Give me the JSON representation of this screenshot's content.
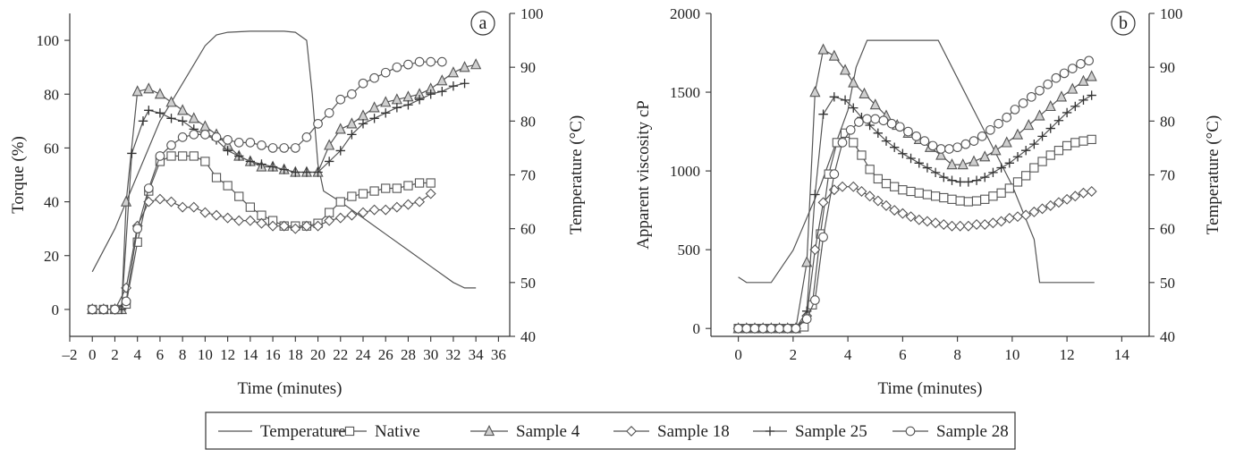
{
  "legend": [
    {
      "key": "temperature",
      "label": "Temperature",
      "marker": "none"
    },
    {
      "key": "native",
      "label": "Native",
      "marker": "square"
    },
    {
      "key": "s4",
      "label": "Sample 4",
      "marker": "triangle"
    },
    {
      "key": "s18",
      "label": "Sample 18",
      "marker": "diamond"
    },
    {
      "key": "s25",
      "label": "Sample 25",
      "marker": "plus"
    },
    {
      "key": "s28",
      "label": "Sample 28",
      "marker": "circle"
    }
  ],
  "chart_data": [
    {
      "panel": "a",
      "type": "line",
      "xlabel": "Time (minutes)",
      "ylabel": "Torque (%)",
      "y2label": "Temperature (°C)",
      "xlim": [
        -2,
        37
      ],
      "ylim": [
        -10,
        110
      ],
      "y2lim": [
        40,
        100
      ],
      "xticks": [
        -2,
        0,
        2,
        4,
        6,
        8,
        10,
        12,
        14,
        16,
        18,
        20,
        22,
        24,
        26,
        28,
        30,
        32,
        34,
        36
      ],
      "yticks": [
        0,
        20,
        40,
        60,
        80,
        100
      ],
      "y2ticks": [
        40,
        50,
        60,
        70,
        80,
        90,
        100
      ],
      "temperature": {
        "x": [
          0,
          2,
          4,
          6,
          8,
          10,
          11,
          12,
          14,
          16,
          17,
          18,
          19,
          19.5,
          20,
          20.5,
          22,
          24,
          26,
          28,
          30,
          32,
          33,
          34
        ],
        "y": [
          52,
          60,
          70,
          80,
          87,
          94,
          96,
          96.5,
          96.7,
          96.7,
          96.7,
          96.5,
          95,
          85,
          72,
          67,
          65,
          62,
          59,
          56,
          53,
          50,
          49,
          49
        ]
      },
      "series": [
        {
          "key": "native",
          "name": "Native",
          "x": [
            0,
            1,
            2,
            3,
            4,
            5,
            6,
            7,
            8,
            9,
            10,
            11,
            12,
            13,
            14,
            15,
            16,
            17,
            18,
            19,
            20,
            21,
            22,
            23,
            24,
            25,
            26,
            27,
            28,
            29,
            30
          ],
          "y": [
            0,
            0,
            0,
            2,
            25,
            44,
            55,
            57,
            57,
            57,
            55,
            49,
            46,
            42,
            38,
            35,
            33,
            31,
            31,
            31,
            32,
            36,
            40,
            42,
            43,
            44,
            45,
            45,
            46,
            47,
            47
          ]
        },
        {
          "key": "s4",
          "name": "Sample 4",
          "x": [
            0,
            1,
            2,
            2.6,
            3,
            4,
            5,
            6,
            7,
            8,
            9,
            10,
            11,
            12,
            13,
            14,
            15,
            16,
            17,
            18,
            19,
            20,
            21,
            22,
            23,
            24,
            25,
            26,
            27,
            28,
            29,
            30,
            31,
            32,
            33,
            34
          ],
          "y": [
            0,
            0,
            0,
            0,
            40,
            81,
            82,
            80,
            77,
            74,
            71,
            68,
            65,
            61,
            57,
            55,
            53,
            53,
            52,
            51,
            51,
            51,
            61,
            67,
            69,
            72,
            75,
            77,
            78,
            79,
            80,
            82,
            85,
            88,
            90,
            91
          ]
        },
        {
          "key": "s18",
          "name": "Sample 18",
          "x": [
            0,
            1,
            2,
            3,
            4,
            5,
            6,
            7,
            8,
            9,
            10,
            11,
            12,
            13,
            14,
            15,
            16,
            17,
            18,
            19,
            20,
            21,
            22,
            23,
            24,
            25,
            26,
            27,
            28,
            29,
            30
          ],
          "y": [
            0,
            0,
            0,
            8,
            31,
            40,
            41,
            40,
            38,
            38,
            36,
            35,
            34,
            33,
            33,
            32,
            31,
            31,
            30,
            31,
            31,
            33,
            34,
            35,
            36,
            37,
            37,
            38,
            39,
            40,
            43
          ]
        },
        {
          "key": "s25",
          "name": "Sample 25",
          "x": [
            0,
            1,
            2,
            2.6,
            3.5,
            4.5,
            5,
            6,
            7,
            8,
            9,
            10,
            11,
            12,
            13,
            14,
            15,
            16,
            17,
            18,
            19,
            20,
            21,
            22,
            23,
            24,
            25,
            26,
            27,
            28,
            29,
            30,
            31,
            32,
            33
          ],
          "y": [
            0,
            0,
            0,
            0,
            58,
            70,
            74,
            73,
            71,
            70,
            67,
            65,
            63,
            59,
            57,
            55,
            54,
            53,
            52,
            51,
            51,
            51,
            55,
            59,
            65,
            69,
            71,
            73,
            75,
            76,
            78,
            80,
            81,
            83,
            84
          ]
        },
        {
          "key": "s28",
          "name": "Sample 28",
          "x": [
            0,
            1,
            2,
            3,
            4,
            5,
            6,
            7,
            8,
            9,
            10,
            11,
            12,
            13,
            14,
            15,
            16,
            17,
            18,
            19,
            20,
            21,
            22,
            23,
            24,
            25,
            26,
            27,
            28,
            29,
            30,
            31
          ],
          "y": [
            0,
            0,
            0,
            3,
            30,
            45,
            57,
            61,
            64,
            65,
            65,
            64,
            63,
            62,
            62,
            61,
            60,
            60,
            60,
            64,
            69,
            73,
            78,
            80,
            84,
            86,
            88,
            90,
            91,
            92,
            92,
            92
          ]
        }
      ]
    },
    {
      "panel": "b",
      "type": "line",
      "xlabel": "Time (minutes)",
      "ylabel": "Apparent viscosity cP",
      "y2label": "Temperature (°C)",
      "xlim": [
        -1,
        15
      ],
      "ylim": [
        -50,
        2000
      ],
      "y2lim": [
        40,
        100
      ],
      "xticks": [
        0,
        2,
        4,
        6,
        8,
        10,
        12,
        14
      ],
      "yticks": [
        0,
        500,
        1000,
        1500,
        2000
      ],
      "y2ticks": [
        40,
        50,
        60,
        70,
        80,
        90,
        100
      ],
      "temperature": {
        "x": [
          0,
          0.3,
          0.8,
          1.2,
          2,
          3,
          4,
          4.3,
          4.7,
          5,
          6,
          7,
          7.3,
          8,
          9,
          10,
          10.8,
          11,
          12,
          13
        ],
        "y": [
          51,
          50,
          50,
          50,
          56,
          68,
          82,
          90,
          95,
          95,
          95,
          95,
          95,
          88,
          78,
          68,
          58,
          50,
          50,
          50
        ]
      },
      "series": [
        {
          "key": "native",
          "name": "Native",
          "x": [
            0,
            0.3,
            0.6,
            0.9,
            1.2,
            1.5,
            1.8,
            2.1,
            2.4,
            2.7,
            3.0,
            3.3,
            3.6,
            3.9,
            4.2,
            4.5,
            4.8,
            5.1,
            5.4,
            5.7,
            6.0,
            6.3,
            6.6,
            6.9,
            7.2,
            7.5,
            7.8,
            8.1,
            8.4,
            8.7,
            9.0,
            9.3,
            9.6,
            9.9,
            10.2,
            10.5,
            10.8,
            11.1,
            11.4,
            11.7,
            12.0,
            12.3,
            12.6,
            12.9
          ],
          "y": [
            0,
            0,
            0,
            0,
            0,
            0,
            0,
            0,
            10,
            150,
            600,
            980,
            1180,
            1240,
            1180,
            1100,
            1010,
            950,
            920,
            900,
            880,
            870,
            860,
            850,
            840,
            830,
            820,
            810,
            805,
            810,
            820,
            840,
            860,
            890,
            930,
            970,
            1020,
            1060,
            1100,
            1130,
            1160,
            1180,
            1190,
            1200
          ]
        },
        {
          "key": "s4",
          "name": "Sample 4",
          "x": [
            0,
            0.3,
            0.6,
            0.9,
            1.2,
            1.5,
            1.8,
            2.1,
            2.5,
            2.8,
            3.1,
            3.5,
            3.9,
            4.2,
            4.6,
            5.0,
            5.4,
            5.8,
            6.2,
            6.6,
            7.0,
            7.4,
            7.8,
            8.2,
            8.6,
            9.0,
            9.4,
            9.8,
            10.2,
            10.6,
            11.0,
            11.4,
            11.8,
            12.2,
            12.6,
            12.9
          ],
          "y": [
            0,
            0,
            0,
            0,
            0,
            0,
            0,
            0,
            420,
            1500,
            1770,
            1730,
            1640,
            1560,
            1490,
            1420,
            1350,
            1290,
            1240,
            1200,
            1150,
            1100,
            1040,
            1040,
            1060,
            1090,
            1130,
            1180,
            1230,
            1290,
            1350,
            1410,
            1470,
            1520,
            1570,
            1600
          ]
        },
        {
          "key": "s18",
          "name": "Sample 18",
          "x": [
            0,
            0.3,
            0.6,
            0.9,
            1.2,
            1.5,
            1.8,
            2.1,
            2.5,
            2.8,
            3.1,
            3.5,
            3.8,
            4.2,
            4.5,
            4.8,
            5.1,
            5.4,
            5.7,
            6.0,
            6.3,
            6.6,
            6.9,
            7.2,
            7.5,
            7.8,
            8.1,
            8.4,
            8.7,
            9.0,
            9.3,
            9.6,
            9.9,
            10.2,
            10.5,
            10.8,
            11.1,
            11.4,
            11.7,
            12.0,
            12.3,
            12.6,
            12.9
          ],
          "y": [
            0,
            0,
            0,
            0,
            0,
            0,
            0,
            0,
            80,
            500,
            800,
            880,
            900,
            900,
            870,
            840,
            810,
            780,
            750,
            730,
            710,
            690,
            680,
            670,
            660,
            650,
            650,
            650,
            660,
            660,
            670,
            680,
            700,
            710,
            720,
            740,
            760,
            780,
            800,
            820,
            840,
            860,
            870
          ]
        },
        {
          "key": "s25",
          "name": "Sample 25",
          "x": [
            0,
            0.3,
            0.6,
            0.9,
            1.2,
            1.5,
            1.8,
            2.1,
            2.5,
            2.8,
            3.1,
            3.5,
            3.9,
            4.2,
            4.5,
            4.8,
            5.1,
            5.4,
            5.7,
            6.0,
            6.3,
            6.6,
            6.9,
            7.2,
            7.5,
            7.8,
            8.1,
            8.4,
            8.7,
            9.0,
            9.3,
            9.6,
            9.9,
            10.2,
            10.5,
            10.8,
            11.1,
            11.4,
            11.7,
            12.0,
            12.3,
            12.6,
            12.9
          ],
          "y": [
            0,
            0,
            0,
            0,
            0,
            0,
            0,
            0,
            110,
            850,
            1360,
            1470,
            1450,
            1400,
            1340,
            1290,
            1240,
            1190,
            1150,
            1110,
            1080,
            1050,
            1020,
            990,
            960,
            940,
            930,
            930,
            940,
            960,
            990,
            1020,
            1050,
            1090,
            1130,
            1170,
            1220,
            1270,
            1320,
            1370,
            1410,
            1450,
            1480
          ]
        },
        {
          "key": "s28",
          "name": "Sample 28",
          "x": [
            0,
            0.3,
            0.6,
            0.9,
            1.2,
            1.5,
            1.8,
            2.1,
            2.5,
            2.8,
            3.1,
            3.5,
            3.8,
            4.1,
            4.4,
            4.7,
            5.0,
            5.3,
            5.6,
            5.9,
            6.2,
            6.5,
            6.8,
            7.1,
            7.4,
            7.7,
            8.0,
            8.3,
            8.6,
            8.9,
            9.2,
            9.5,
            9.8,
            10.1,
            10.4,
            10.7,
            11.0,
            11.3,
            11.6,
            11.9,
            12.2,
            12.5,
            12.8
          ],
          "y": [
            0,
            0,
            0,
            0,
            0,
            0,
            0,
            0,
            60,
            180,
            580,
            980,
            1180,
            1260,
            1310,
            1330,
            1330,
            1320,
            1300,
            1280,
            1250,
            1220,
            1190,
            1160,
            1140,
            1140,
            1150,
            1170,
            1190,
            1220,
            1260,
            1300,
            1340,
            1390,
            1430,
            1470,
            1510,
            1550,
            1590,
            1620,
            1650,
            1680,
            1700
          ]
        }
      ]
    }
  ]
}
